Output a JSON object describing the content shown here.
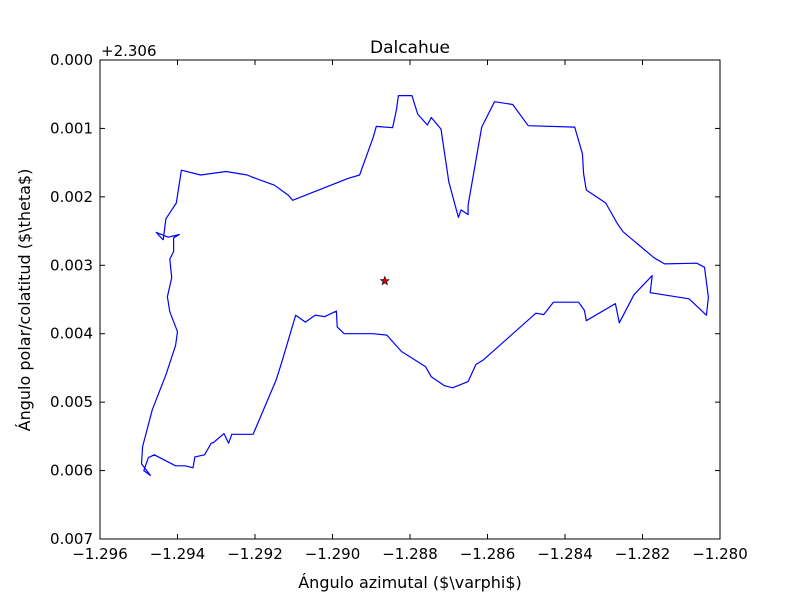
{
  "chart_data": {
    "type": "line",
    "title": "Dalcahue",
    "xlabel": "Ángulo azimutal ($\\varphi$)",
    "ylabel": "Ángulo polar/colatitud ($\\theta$)",
    "y_offset_label": "+2.306",
    "xlim": [
      -1.296,
      -1.28
    ],
    "ylim": [
      0.007,
      0.0
    ],
    "y_inverted": true,
    "grid": false,
    "legend": "none",
    "xticks": [
      -1.296,
      -1.294,
      -1.292,
      -1.29,
      -1.288,
      -1.286,
      -1.284,
      -1.282,
      -1.28
    ],
    "xtick_labels": [
      "−1.296",
      "−1.294",
      "−1.292",
      "−1.290",
      "−1.288",
      "−1.286",
      "−1.284",
      "−1.282",
      "−1.280"
    ],
    "yticks": [
      0.0,
      0.001,
      0.002,
      0.003,
      0.004,
      0.005,
      0.006,
      0.007
    ],
    "ytick_labels": [
      "0.000",
      "0.001",
      "0.002",
      "0.003",
      "0.004",
      "0.005",
      "0.006",
      "0.007"
    ],
    "series": [
      {
        "color": "#0000ff",
        "x": [
          -1.29437,
          -1.2943,
          -1.29403,
          -1.2939,
          -1.2934,
          -1.29275,
          -1.2922,
          -1.29208,
          -1.2915,
          -1.29113,
          -1.29103,
          -1.2896,
          -1.2893,
          -1.28895,
          -1.28887,
          -1.28845,
          -1.28835,
          -1.2883,
          -1.28795,
          -1.2878,
          -1.28755,
          -1.28745,
          -1.2872,
          -1.287,
          -1.28675,
          -1.28668,
          -1.2865,
          -1.2865,
          -1.28615,
          -1.28582,
          -1.28535,
          -1.28495,
          -1.28375,
          -1.28355,
          -1.28352,
          -1.28345,
          -1.28295,
          -1.28265,
          -1.2825,
          -1.2817,
          -1.28143,
          -1.2806,
          -1.2804,
          -1.2803,
          -1.28035,
          -1.2808,
          -1.2818,
          -1.28175,
          -1.28222,
          -1.2826,
          -1.2827,
          -1.28345,
          -1.2835,
          -1.28365,
          -1.2843,
          -1.28455,
          -1.28475,
          -1.2861,
          -1.2863,
          -1.2865,
          -1.2869,
          -1.28711,
          -1.28745,
          -1.2876,
          -1.28822,
          -1.2886,
          -1.28895,
          -1.2897,
          -1.28988,
          -1.2899,
          -1.2902,
          -1.29045,
          -1.2907,
          -1.29095,
          -1.2913,
          -1.29145,
          -1.29205,
          -1.2926,
          -1.29268,
          -1.2928,
          -1.29307,
          -1.29313,
          -1.2933,
          -1.29355,
          -1.2936,
          -1.2938,
          -1.29405,
          -1.2946,
          -1.29475,
          -1.29487,
          -1.2947,
          -1.29493,
          -1.2949,
          -1.29465,
          -1.2943,
          -1.29405,
          -1.294,
          -1.2942,
          -1.29426,
          -1.29415,
          -1.2942,
          -1.2941,
          -1.2941,
          -1.29395,
          -1.29424,
          -1.29455,
          -1.29437
        ],
        "y": [
          0.00263,
          0.00232,
          0.00209,
          0.00161,
          0.00168,
          0.00163,
          0.00168,
          0.00171,
          0.00183,
          0.00198,
          0.00205,
          0.00173,
          0.00168,
          0.00113,
          0.00097,
          0.00099,
          0.00073,
          0.00052,
          0.00052,
          0.00079,
          0.00095,
          0.00084,
          0.00101,
          0.00178,
          0.0023,
          0.00219,
          0.00226,
          0.00212,
          0.00098,
          0.00061,
          0.00065,
          0.00096,
          0.00098,
          0.00137,
          0.00166,
          0.0019,
          0.00209,
          0.00239,
          0.00251,
          0.00289,
          0.00298,
          0.00297,
          0.00303,
          0.00347,
          0.00373,
          0.00349,
          0.0034,
          0.00315,
          0.00343,
          0.00384,
          0.00356,
          0.00381,
          0.00366,
          0.00354,
          0.00354,
          0.00372,
          0.0037,
          0.00438,
          0.00445,
          0.0047,
          0.00479,
          0.00476,
          0.00463,
          0.00448,
          0.00426,
          0.00402,
          0.004,
          0.004,
          0.0039,
          0.00367,
          0.00375,
          0.00373,
          0.00383,
          0.00373,
          0.0044,
          0.00467,
          0.00547,
          0.00547,
          0.0056,
          0.00546,
          0.00559,
          0.0056,
          0.00577,
          0.0058,
          0.00596,
          0.00593,
          0.00593,
          0.00577,
          0.00581,
          0.006,
          0.00607,
          0.0059,
          0.00565,
          0.00511,
          0.0046,
          0.00417,
          0.00397,
          0.00368,
          0.00346,
          0.00318,
          0.00291,
          0.0028,
          0.0026,
          0.00255,
          0.00259,
          0.00252,
          0.00263
        ]
      }
    ],
    "marker_point": {
      "x": -1.28865,
      "y": 0.00323,
      "color": "#dd0000",
      "shape": "star"
    }
  }
}
